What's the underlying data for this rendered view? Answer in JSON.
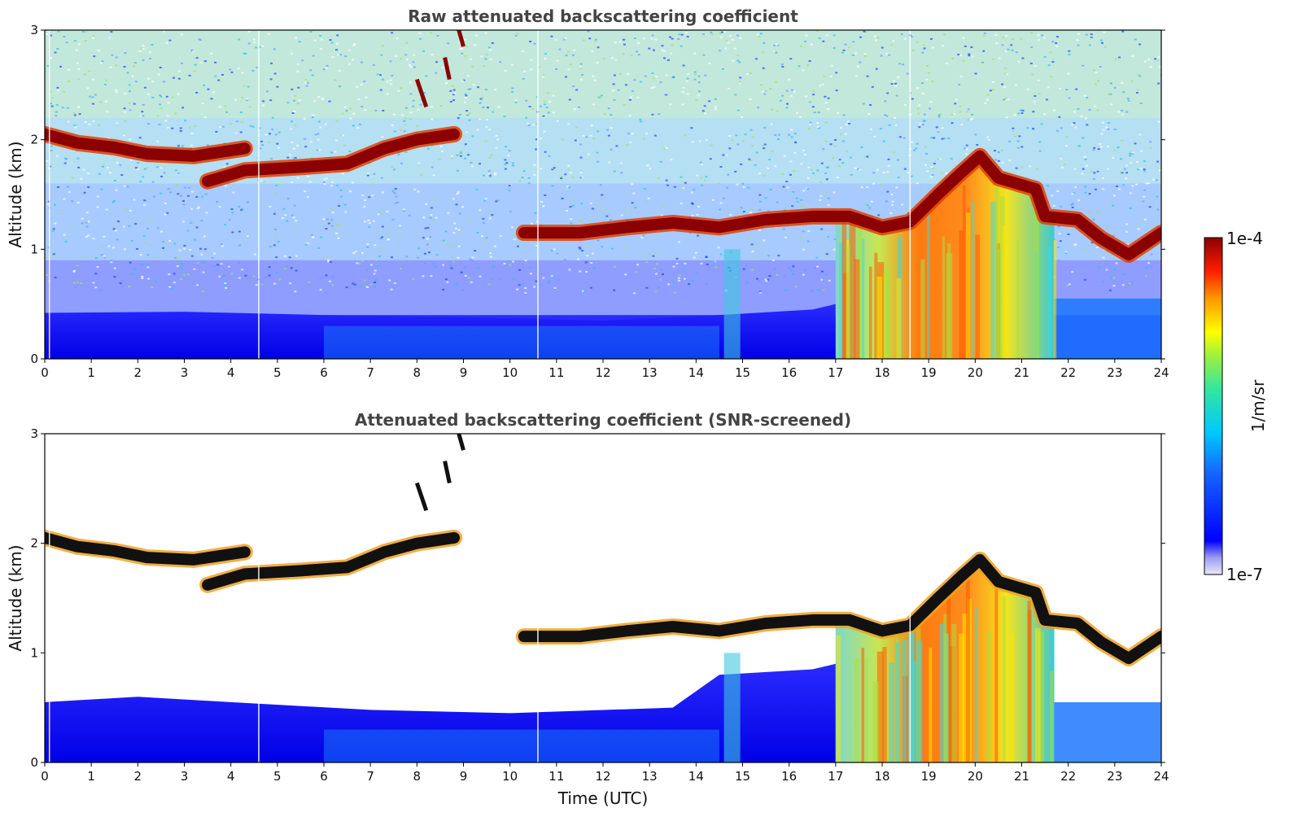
{
  "chart_data": [
    {
      "type": "heatmap",
      "title": "Raw attenuated backscattering coefficient",
      "xlabel": "",
      "ylabel": "Altitude (km)",
      "xlim": [
        0,
        24
      ],
      "ylim": [
        0,
        3
      ],
      "x_ticks": [
        "0",
        "1",
        "2",
        "3",
        "4",
        "5",
        "6",
        "7",
        "8",
        "9",
        "10",
        "11",
        "12",
        "13",
        "14",
        "15",
        "16",
        "17",
        "18",
        "19",
        "20",
        "21",
        "22",
        "23",
        "24"
      ],
      "y_ticks": [
        "0",
        "1",
        "2",
        "3"
      ],
      "background": "noisy",
      "layer_top": [
        {
          "x": 0.0,
          "y": 2.05
        },
        {
          "x": 0.7,
          "y": 1.97
        },
        {
          "x": 1.5,
          "y": 1.93
        },
        {
          "x": 2.2,
          "y": 1.87
        },
        {
          "x": 3.2,
          "y": 1.85
        },
        {
          "x": 4.3,
          "y": 1.92
        }
      ],
      "layer_mid": [
        {
          "x": 3.5,
          "y": 1.62
        },
        {
          "x": 4.3,
          "y": 1.72
        },
        {
          "x": 5.5,
          "y": 1.75
        },
        {
          "x": 6.5,
          "y": 1.78
        },
        {
          "x": 7.3,
          "y": 1.92
        },
        {
          "x": 8.0,
          "y": 2.0
        },
        {
          "x": 8.8,
          "y": 2.05
        }
      ],
      "layer_low": [
        {
          "x": 10.3,
          "y": 1.15
        },
        {
          "x": 11.5,
          "y": 1.15
        },
        {
          "x": 12.5,
          "y": 1.2
        },
        {
          "x": 13.5,
          "y": 1.24
        },
        {
          "x": 14.5,
          "y": 1.2
        },
        {
          "x": 15.5,
          "y": 1.27
        },
        {
          "x": 16.5,
          "y": 1.3
        },
        {
          "x": 17.3,
          "y": 1.3
        },
        {
          "x": 18.0,
          "y": 1.2
        },
        {
          "x": 18.6,
          "y": 1.25
        },
        {
          "x": 19.2,
          "y": 1.5
        },
        {
          "x": 19.7,
          "y": 1.7
        },
        {
          "x": 20.1,
          "y": 1.85
        },
        {
          "x": 20.5,
          "y": 1.65
        },
        {
          "x": 21.3,
          "y": 1.55
        },
        {
          "x": 21.5,
          "y": 1.3
        },
        {
          "x": 22.2,
          "y": 1.27
        },
        {
          "x": 22.7,
          "y": 1.1
        },
        {
          "x": 23.3,
          "y": 0.95
        },
        {
          "x": 24.0,
          "y": 1.15
        }
      ],
      "aerosol_top": [
        {
          "x": 0.0,
          "y": 0.42
        },
        {
          "x": 3.0,
          "y": 0.43
        },
        {
          "x": 6.0,
          "y": 0.4
        },
        {
          "x": 9.0,
          "y": 0.38
        },
        {
          "x": 12.0,
          "y": 0.35
        },
        {
          "x": 14.5,
          "y": 0.4
        },
        {
          "x": 16.5,
          "y": 0.45
        },
        {
          "x": 17.0,
          "y": 0.5
        }
      ],
      "convective_region": {
        "x": [
          17.0,
          21.7
        ],
        "y": [
          0.0,
          1.85
        ]
      }
    },
    {
      "type": "heatmap",
      "title": "Attenuated backscattering coefficient (SNR-screened)",
      "xlabel": "Time (UTC)",
      "ylabel": "Altitude (km)",
      "xlim": [
        0,
        24
      ],
      "ylim": [
        0,
        3
      ],
      "x_ticks": [
        "0",
        "1",
        "2",
        "3",
        "4",
        "5",
        "6",
        "7",
        "8",
        "9",
        "10",
        "11",
        "12",
        "13",
        "14",
        "15",
        "16",
        "17",
        "18",
        "19",
        "20",
        "21",
        "22",
        "23",
        "24"
      ],
      "y_ticks": [
        "0",
        "1",
        "2",
        "3"
      ],
      "background": "screened",
      "layer_top": [
        {
          "x": 0.0,
          "y": 2.05
        },
        {
          "x": 0.7,
          "y": 1.97
        },
        {
          "x": 1.5,
          "y": 1.93
        },
        {
          "x": 2.2,
          "y": 1.87
        },
        {
          "x": 3.2,
          "y": 1.85
        },
        {
          "x": 4.3,
          "y": 1.92
        }
      ],
      "layer_mid": [
        {
          "x": 3.5,
          "y": 1.62
        },
        {
          "x": 4.3,
          "y": 1.72
        },
        {
          "x": 5.5,
          "y": 1.75
        },
        {
          "x": 6.5,
          "y": 1.78
        },
        {
          "x": 7.3,
          "y": 1.92
        },
        {
          "x": 8.0,
          "y": 2.0
        },
        {
          "x": 8.8,
          "y": 2.05
        }
      ],
      "layer_low": [
        {
          "x": 10.3,
          "y": 1.15
        },
        {
          "x": 11.5,
          "y": 1.15
        },
        {
          "x": 12.5,
          "y": 1.2
        },
        {
          "x": 13.5,
          "y": 1.24
        },
        {
          "x": 14.5,
          "y": 1.2
        },
        {
          "x": 15.5,
          "y": 1.27
        },
        {
          "x": 16.5,
          "y": 1.3
        },
        {
          "x": 17.3,
          "y": 1.3
        },
        {
          "x": 18.0,
          "y": 1.2
        },
        {
          "x": 18.6,
          "y": 1.25
        },
        {
          "x": 19.2,
          "y": 1.5
        },
        {
          "x": 19.7,
          "y": 1.7
        },
        {
          "x": 20.1,
          "y": 1.85
        },
        {
          "x": 20.5,
          "y": 1.65
        },
        {
          "x": 21.3,
          "y": 1.55
        },
        {
          "x": 21.5,
          "y": 1.3
        },
        {
          "x": 22.2,
          "y": 1.27
        },
        {
          "x": 22.7,
          "y": 1.1
        },
        {
          "x": 23.3,
          "y": 0.95
        },
        {
          "x": 24.0,
          "y": 1.15
        }
      ],
      "aerosol_top": [
        {
          "x": 0.0,
          "y": 0.55
        },
        {
          "x": 2.0,
          "y": 0.6
        },
        {
          "x": 4.0,
          "y": 0.55
        },
        {
          "x": 7.0,
          "y": 0.48
        },
        {
          "x": 10.0,
          "y": 0.45
        },
        {
          "x": 13.5,
          "y": 0.5
        },
        {
          "x": 14.5,
          "y": 0.8
        },
        {
          "x": 16.5,
          "y": 0.85
        },
        {
          "x": 17.0,
          "y": 0.9
        }
      ],
      "convective_region": {
        "x": [
          17.0,
          21.7
        ],
        "y": [
          0.0,
          1.85
        ]
      }
    }
  ],
  "colorbar": {
    "label": "1/m/sr",
    "max_label": "1e-4",
    "min_label": "1e-7",
    "stops": [
      "#e6e6fa",
      "#0000ff",
      "#00bfff",
      "#7cfc00",
      "#ffff00",
      "#ff8c00",
      "#ff0000",
      "#8b0000"
    ]
  }
}
